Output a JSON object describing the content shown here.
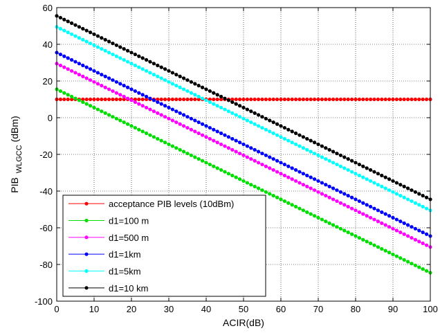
{
  "chart_data": {
    "type": "line",
    "title": "",
    "xlabel": "ACIR(dB)",
    "ylabel_main": "PIB",
    "ylabel_sub": "WLGCC",
    "ylabel_unit": "(dBm)",
    "xlim": [
      0,
      100
    ],
    "ylim": [
      -100,
      60
    ],
    "xticks": [
      0,
      10,
      20,
      30,
      40,
      50,
      60,
      70,
      80,
      90,
      100
    ],
    "yticks": [
      -100,
      -80,
      -60,
      -40,
      -20,
      0,
      20,
      40,
      60
    ],
    "grid": true,
    "legend_position": "bottom-left",
    "x_step": 1,
    "series": [
      {
        "name": "acceptance PIB levels (10dBm)",
        "color": "#ff0000",
        "y_at_0": 10,
        "slope": 0
      },
      {
        "name": "d1=100 m",
        "color": "#00dd00",
        "y_at_0": 15.5,
        "slope": -1
      },
      {
        "name": "d1=500 m",
        "color": "#ff00ff",
        "y_at_0": 29.5,
        "slope": -1
      },
      {
        "name": "d1=1km",
        "color": "#0000ff",
        "y_at_0": 35.5,
        "slope": -1
      },
      {
        "name": "d1=5km",
        "color": "#00ffff",
        "y_at_0": 49.5,
        "slope": -1
      },
      {
        "name": "d1=10 km",
        "color": "#000000",
        "y_at_0": 55.5,
        "slope": -1
      }
    ]
  }
}
